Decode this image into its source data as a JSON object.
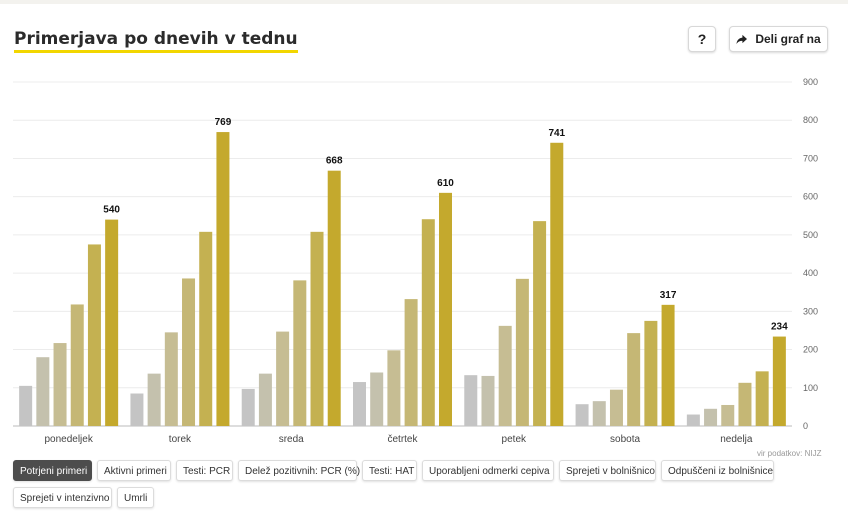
{
  "title": "Primerjava po dnevih v tednu",
  "buttons": {
    "help_label": "?",
    "share_label": "Deli graf na"
  },
  "source": "vir podatkov: NIJZ",
  "tabs": [
    {
      "label": "Potrjeni primeri",
      "active": true
    },
    {
      "label": "Aktivni primeri",
      "active": false
    },
    {
      "label": "Testi: PCR",
      "active": false
    },
    {
      "label": "Delež pozitivnih: PCR (%)",
      "active": false
    },
    {
      "label": "Testi: HAT",
      "active": false
    },
    {
      "label": "Uporabljeni odmerki cepiva",
      "active": false
    },
    {
      "label": "Sprejeti v bolnišnico",
      "active": false
    },
    {
      "label": "Odpuščeni iz bolnišnice",
      "active": false
    },
    {
      "label": "Sprejeti v intenzivno",
      "active": false
    },
    {
      "label": "Umrli",
      "active": false
    }
  ],
  "chart_data": {
    "type": "bar",
    "categories": [
      "ponedeljek",
      "torek",
      "sreda",
      "četrtek",
      "petek",
      "sobota",
      "nedelja"
    ],
    "series": [
      {
        "color": "#c4c4c4",
        "values": [
          105,
          85,
          97,
          115,
          133,
          57,
          30
        ]
      },
      {
        "color": "#c4c1ad",
        "values": [
          180,
          137,
          137,
          140,
          131,
          65,
          45
        ]
      },
      {
        "color": "#c6bd93",
        "values": [
          217,
          245,
          247,
          198,
          262,
          95,
          55
        ]
      },
      {
        "color": "#c5b775",
        "values": [
          318,
          386,
          381,
          332,
          385,
          243,
          113
        ]
      },
      {
        "color": "#c4b151",
        "values": [
          475,
          508,
          508,
          541,
          536,
          275,
          143
        ]
      },
      {
        "color": "#c4a92d",
        "values": [
          540,
          769,
          668,
          610,
          741,
          317,
          234
        ]
      }
    ],
    "data_labels": [
      "540",
      "769",
      "668",
      "610",
      "741",
      "317",
      "234"
    ],
    "y_ticks": [
      "0",
      "100",
      "200",
      "300",
      "400",
      "500",
      "600",
      "700",
      "800",
      "900"
    ],
    "ylim": [
      0,
      900
    ],
    "grid": true,
    "y_axis_position": "right"
  }
}
